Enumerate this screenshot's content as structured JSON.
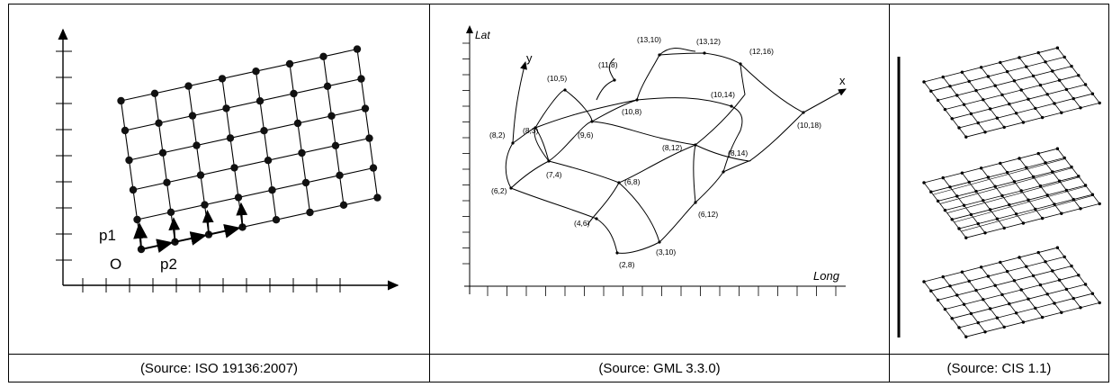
{
  "panels": [
    {
      "caption": "(Source: ISO 19136:2007)",
      "labels": {
        "origin": "O",
        "p1": "p1",
        "p2": "p2"
      }
    },
    {
      "caption": "(Source: GML 3.3.0)",
      "axis_labels": {
        "lat": "Lat",
        "long": "Long",
        "x": "x",
        "y": "y"
      },
      "points": [
        {
          "id": "p-13-10",
          "label": "(13,10)"
        },
        {
          "id": "p-13-12",
          "label": "(13,12)"
        },
        {
          "id": "p-11-8",
          "label": "(11,8)"
        },
        {
          "id": "p-12-16",
          "label": "(12,16)"
        },
        {
          "id": "p-10-5",
          "label": "(10,5)"
        },
        {
          "id": "p-10-14",
          "label": "(10,14)"
        },
        {
          "id": "p-10-8",
          "label": "(10,8)"
        },
        {
          "id": "p-8-2",
          "label": "(8,2)"
        },
        {
          "id": "p-8-3",
          "label": "(8,3)"
        },
        {
          "id": "p-9-6",
          "label": "(9,6)"
        },
        {
          "id": "p-10-18",
          "label": "(10,18)"
        },
        {
          "id": "p-8-12",
          "label": "(8,12)"
        },
        {
          "id": "p-8-14",
          "label": "(8,14)"
        },
        {
          "id": "p-7-4",
          "label": "(7,4)"
        },
        {
          "id": "p-6-2",
          "label": "(6,2)"
        },
        {
          "id": "p-6-8",
          "label": "(6,8)"
        },
        {
          "id": "p-6-12",
          "label": "(6,12)"
        },
        {
          "id": "p-4-6",
          "label": "(4,6)"
        },
        {
          "id": "p-3-10",
          "label": "(3,10)"
        },
        {
          "id": "p-2-8",
          "label": "(2,8)"
        }
      ]
    },
    {
      "caption": "(Source: CIS 1.1)"
    }
  ]
}
